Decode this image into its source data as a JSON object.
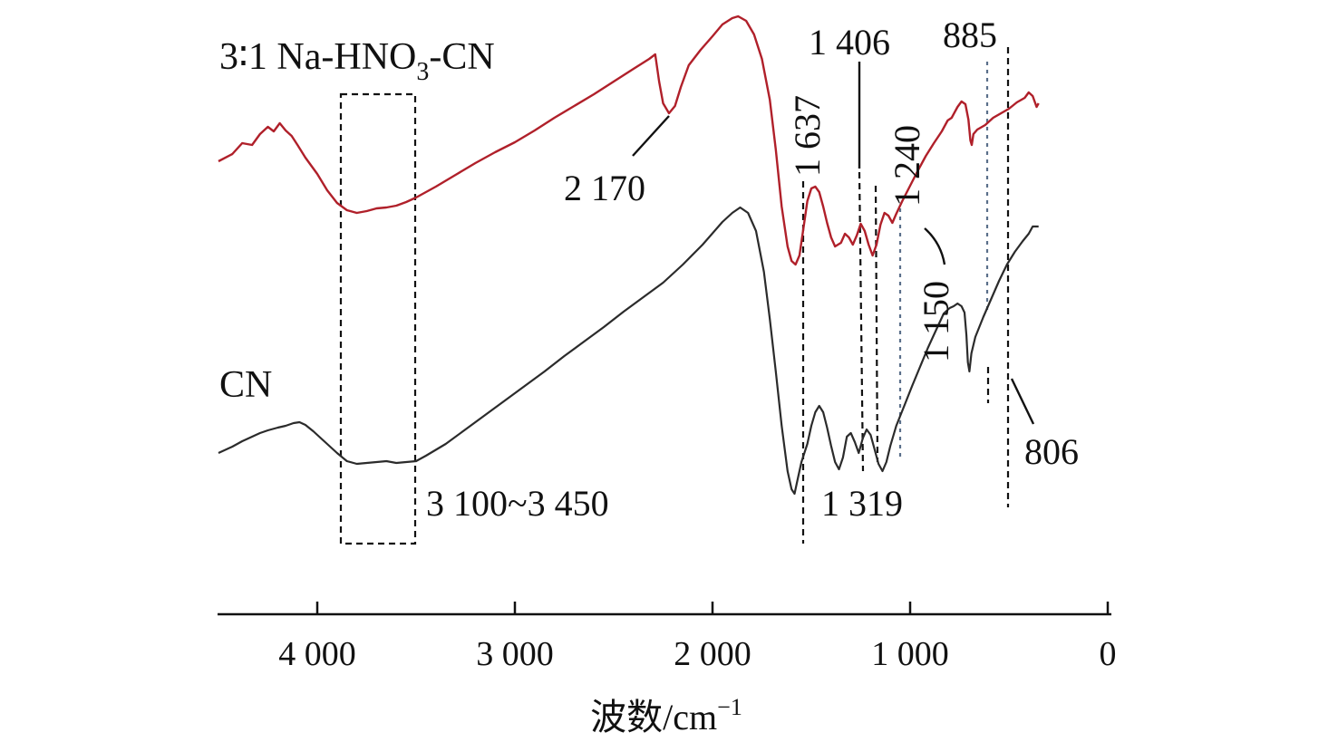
{
  "chart_data": {
    "type": "line",
    "title": "",
    "xlabel": "波数/cm⁻¹",
    "xlabel_base": "波数/cm",
    "xlabel_sup": "−1",
    "ylabel": "",
    "xlim": [
      4500,
      0
    ],
    "x_reversed": true,
    "grid": false,
    "x_ticks": [
      {
        "value": 4000,
        "label": "4 000"
      },
      {
        "value": 3000,
        "label": "3 000"
      },
      {
        "value": 2000,
        "label": "2 000"
      },
      {
        "value": 1000,
        "label": "1 000"
      },
      {
        "value": 0,
        "label": "0"
      }
    ],
    "series": [
      {
        "name": "3∶1 Na-HNO₃-CN",
        "label_parts": {
          "main": "3∶1 Na-HNO",
          "sub": "3",
          "tail": "-CN"
        },
        "color": "#b0202a",
        "points": [
          [
            4500,
            178
          ],
          [
            4430,
            170
          ],
          [
            4380,
            158
          ],
          [
            4330,
            160
          ],
          [
            4290,
            148
          ],
          [
            4250,
            140
          ],
          [
            4220,
            145
          ],
          [
            4190,
            136
          ],
          [
            4160,
            144
          ],
          [
            4130,
            150
          ],
          [
            4100,
            160
          ],
          [
            4060,
            174
          ],
          [
            4000,
            192
          ],
          [
            3950,
            210
          ],
          [
            3900,
            224
          ],
          [
            3850,
            232
          ],
          [
            3800,
            235
          ],
          [
            3750,
            233
          ],
          [
            3700,
            230
          ],
          [
            3650,
            229
          ],
          [
            3600,
            227
          ],
          [
            3550,
            223
          ],
          [
            3500,
            218
          ],
          [
            3400,
            206
          ],
          [
            3300,
            193
          ],
          [
            3200,
            180
          ],
          [
            3100,
            168
          ],
          [
            3000,
            157
          ],
          [
            2900,
            144
          ],
          [
            2800,
            130
          ],
          [
            2700,
            117
          ],
          [
            2600,
            104
          ],
          [
            2500,
            90
          ],
          [
            2400,
            76
          ],
          [
            2320,
            65
          ],
          [
            2290,
            60
          ],
          [
            2270,
            90
          ],
          [
            2250,
            114
          ],
          [
            2220,
            125
          ],
          [
            2190,
            117
          ],
          [
            2160,
            96
          ],
          [
            2120,
            72
          ],
          [
            2060,
            55
          ],
          [
            2000,
            40
          ],
          [
            1950,
            27
          ],
          [
            1900,
            20
          ],
          [
            1870,
            18
          ],
          [
            1830,
            23
          ],
          [
            1790,
            38
          ],
          [
            1750,
            65
          ],
          [
            1710,
            110
          ],
          [
            1680,
            165
          ],
          [
            1650,
            228
          ],
          [
            1620,
            272
          ],
          [
            1600,
            288
          ],
          [
            1580,
            292
          ],
          [
            1560,
            282
          ],
          [
            1540,
            252
          ],
          [
            1520,
            222
          ],
          [
            1500,
            208
          ],
          [
            1480,
            206
          ],
          [
            1460,
            212
          ],
          [
            1440,
            228
          ],
          [
            1420,
            246
          ],
          [
            1400,
            262
          ],
          [
            1380,
            272
          ],
          [
            1350,
            268
          ],
          [
            1330,
            258
          ],
          [
            1310,
            262
          ],
          [
            1290,
            270
          ],
          [
            1270,
            260
          ],
          [
            1250,
            247
          ],
          [
            1230,
            255
          ],
          [
            1210,
            270
          ],
          [
            1190,
            282
          ],
          [
            1170,
            270
          ],
          [
            1150,
            248
          ],
          [
            1130,
            235
          ],
          [
            1110,
            238
          ],
          [
            1090,
            246
          ],
          [
            1070,
            236
          ],
          [
            1040,
            222
          ],
          [
            1000,
            205
          ],
          [
            960,
            188
          ],
          [
            920,
            172
          ],
          [
            880,
            158
          ],
          [
            840,
            145
          ],
          [
            810,
            133
          ],
          [
            790,
            130
          ],
          [
            760,
            118
          ],
          [
            740,
            112
          ],
          [
            720,
            115
          ],
          [
            705,
            132
          ],
          [
            695,
            155
          ],
          [
            688,
            160
          ],
          [
            680,
            148
          ],
          [
            660,
            143
          ],
          [
            620,
            138
          ],
          [
            580,
            130
          ],
          [
            540,
            125
          ],
          [
            500,
            120
          ],
          [
            460,
            113
          ],
          [
            420,
            108
          ],
          [
            400,
            102
          ],
          [
            380,
            106
          ],
          [
            360,
            118
          ],
          [
            350,
            114
          ]
        ]
      },
      {
        "name": "CN",
        "label_parts": {
          "main": "CN",
          "sub": "",
          "tail": ""
        },
        "color": "#2b2b2b",
        "points": [
          [
            4500,
            500
          ],
          [
            4430,
            493
          ],
          [
            4380,
            487
          ],
          [
            4330,
            482
          ],
          [
            4290,
            478
          ],
          [
            4250,
            475
          ],
          [
            4200,
            472
          ],
          [
            4160,
            470
          ],
          [
            4120,
            467
          ],
          [
            4090,
            466
          ],
          [
            4060,
            469
          ],
          [
            4020,
            476
          ],
          [
            3960,
            488
          ],
          [
            3900,
            500
          ],
          [
            3850,
            509
          ],
          [
            3800,
            512
          ],
          [
            3750,
            511
          ],
          [
            3700,
            510
          ],
          [
            3650,
            509
          ],
          [
            3600,
            511
          ],
          [
            3550,
            510
          ],
          [
            3500,
            509
          ],
          [
            3450,
            503
          ],
          [
            3350,
            490
          ],
          [
            3250,
            474
          ],
          [
            3150,
            458
          ],
          [
            3050,
            442
          ],
          [
            2950,
            426
          ],
          [
            2850,
            410
          ],
          [
            2750,
            393
          ],
          [
            2650,
            377
          ],
          [
            2550,
            361
          ],
          [
            2450,
            344
          ],
          [
            2350,
            328
          ],
          [
            2250,
            312
          ],
          [
            2150,
            292
          ],
          [
            2050,
            270
          ],
          [
            1950,
            245
          ],
          [
            1900,
            235
          ],
          [
            1860,
            229
          ],
          [
            1820,
            235
          ],
          [
            1780,
            255
          ],
          [
            1740,
            300
          ],
          [
            1710,
            352
          ],
          [
            1680,
            410
          ],
          [
            1650,
            470
          ],
          [
            1620,
            520
          ],
          [
            1600,
            540
          ],
          [
            1585,
            545
          ],
          [
            1570,
            530
          ],
          [
            1550,
            510
          ],
          [
            1520,
            490
          ],
          [
            1500,
            470
          ],
          [
            1480,
            455
          ],
          [
            1460,
            448
          ],
          [
            1440,
            455
          ],
          [
            1420,
            472
          ],
          [
            1400,
            492
          ],
          [
            1380,
            510
          ],
          [
            1360,
            518
          ],
          [
            1340,
            505
          ],
          [
            1320,
            482
          ],
          [
            1300,
            478
          ],
          [
            1280,
            488
          ],
          [
            1260,
            500
          ],
          [
            1240,
            484
          ],
          [
            1220,
            474
          ],
          [
            1200,
            480
          ],
          [
            1180,
            496
          ],
          [
            1160,
            512
          ],
          [
            1140,
            520
          ],
          [
            1120,
            510
          ],
          [
            1100,
            492
          ],
          [
            1070,
            470
          ],
          [
            1030,
            448
          ],
          [
            990,
            426
          ],
          [
            950,
            405
          ],
          [
            910,
            384
          ],
          [
            870,
            365
          ],
          [
            830,
            346
          ],
          [
            800,
            340
          ],
          [
            780,
            338
          ],
          [
            760,
            335
          ],
          [
            740,
            338
          ],
          [
            725,
            345
          ],
          [
            715,
            370
          ],
          [
            708,
            400
          ],
          [
            700,
            410
          ],
          [
            690,
            390
          ],
          [
            670,
            372
          ],
          [
            630,
            350
          ],
          [
            590,
            330
          ],
          [
            550,
            310
          ],
          [
            510,
            292
          ],
          [
            470,
            278
          ],
          [
            430,
            266
          ],
          [
            400,
            258
          ],
          [
            380,
            250
          ],
          [
            350,
            250
          ]
        ]
      }
    ],
    "annotations": [
      {
        "label": "2 170",
        "anchor": [
          2190,
          120
        ]
      },
      {
        "label": "1 637",
        "anchor": [
          1600,
          290
        ]
      },
      {
        "label": "1 406",
        "anchor": [
          1330,
          262
        ]
      },
      {
        "label": "1 240",
        "anchor": [
          1130,
          235
        ]
      },
      {
        "label": "885",
        "anchor": [
          650,
          140
        ]
      },
      {
        "label": "1 150",
        "anchor": [
          930,
          250
        ]
      },
      {
        "label": "3 100~3 450",
        "anchor": [
          3700,
          510
        ]
      },
      {
        "label": "1 319",
        "anchor": [
          1310,
          480
        ]
      },
      {
        "label": "806",
        "anchor": [
          700,
          410
        ]
      }
    ],
    "highlight_range": [
      3500,
      3850
    ]
  }
}
